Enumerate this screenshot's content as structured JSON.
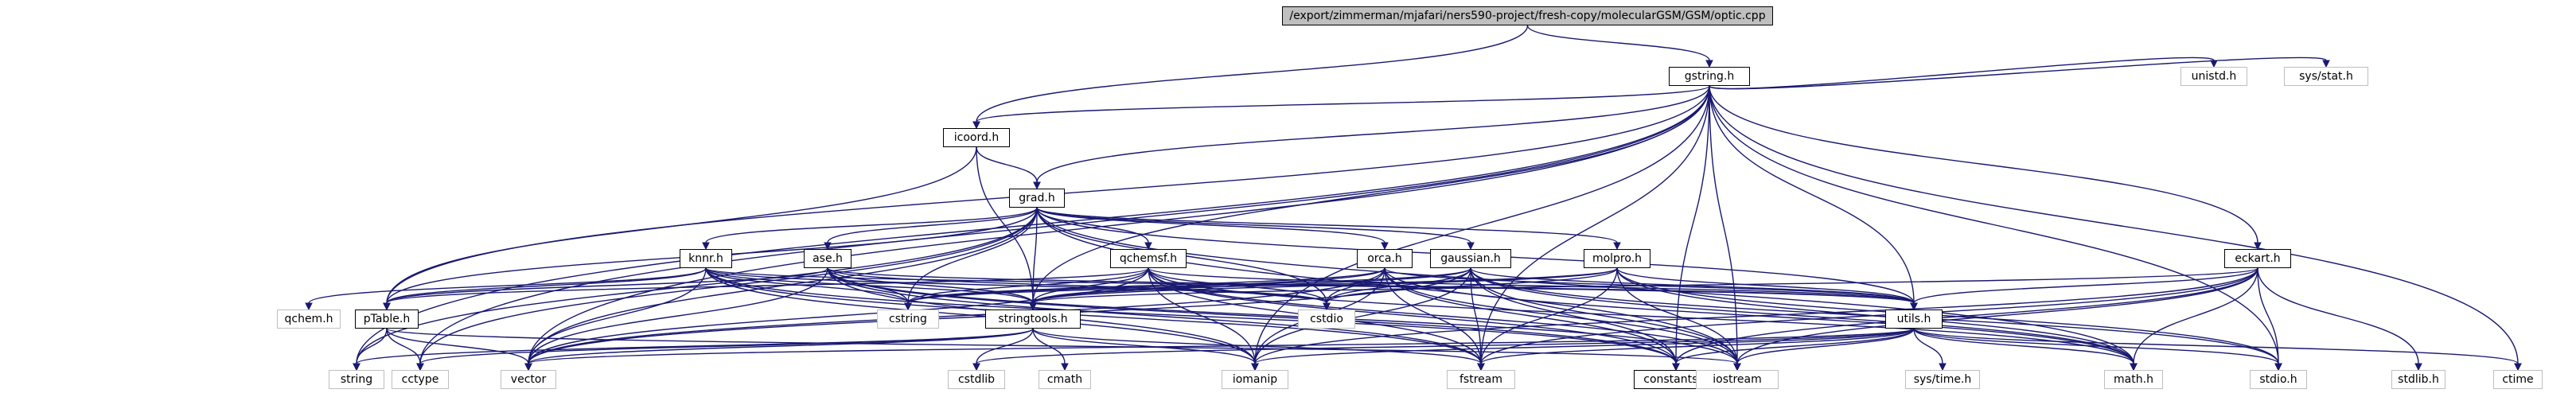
{
  "graph": {
    "title": "/export/zimmerman/mjafari/ners590-project/fresh-copy/molecularGSM/GSM/optic.cpp",
    "colors": {
      "edge": "#191970",
      "documented_border": "#000000",
      "external_border": "#bfbfbf",
      "root_fill": "#bfbfbf"
    },
    "nodes": {
      "root": "/export/zimmerman/mjafari/ners590-project/fresh-copy/molecularGSM/GSM/optic.cpp",
      "gstring": "gstring.h",
      "icoord": "icoord.h",
      "grad": "grad.h",
      "knnr": "knnr.h",
      "ase": "ase.h",
      "qchemsf": "qchemsf.h",
      "orca": "orca.h",
      "gaussian": "gaussian.h",
      "molpro": "molpro.h",
      "eckart": "eckart.h",
      "ptable": "pTable.h",
      "stringtools": "stringtools.h",
      "utils": "utils.h",
      "constants": "constants.h",
      "unistd": "unistd.h",
      "sysstat": "sys/stat.h",
      "qchem": "qchem.h",
      "cstring": "cstring",
      "cstdio": "cstdio",
      "string": "string",
      "cctype": "cctype",
      "vector": "vector",
      "cstdlib": "cstdlib",
      "cmath": "cmath",
      "iomanip": "iomanip",
      "fstream": "fstream",
      "iostream": "iostream",
      "systime": "sys/time.h",
      "math": "math.h",
      "stdio": "stdio.h",
      "stdlib": "stdlib.h",
      "ctime": "ctime"
    },
    "documented": [
      "gstring",
      "icoord",
      "grad",
      "knnr",
      "ase",
      "qchemsf",
      "orca",
      "gaussian",
      "molpro",
      "eckart",
      "ptable",
      "stringtools",
      "utils",
      "constants"
    ],
    "edges": [
      [
        "root",
        "gstring"
      ],
      [
        "root",
        "icoord"
      ],
      [
        "gstring",
        "icoord"
      ],
      [
        "gstring",
        "grad"
      ],
      [
        "gstring",
        "unistd"
      ],
      [
        "gstring",
        "sysstat"
      ],
      [
        "gstring",
        "eckart"
      ],
      [
        "gstring",
        "utils"
      ],
      [
        "gstring",
        "stringtools"
      ],
      [
        "gstring",
        "ptable"
      ],
      [
        "gstring",
        "constants"
      ],
      [
        "gstring",
        "iostream"
      ],
      [
        "gstring",
        "fstream"
      ],
      [
        "gstring",
        "stdio"
      ],
      [
        "gstring",
        "ctime"
      ],
      [
        "gstring",
        "string"
      ],
      [
        "gstring",
        "vector"
      ],
      [
        "gstring",
        "cctype"
      ],
      [
        "gstring",
        "iomanip"
      ],
      [
        "icoord",
        "grad"
      ],
      [
        "icoord",
        "ptable"
      ],
      [
        "icoord",
        "stringtools"
      ],
      [
        "grad",
        "knnr"
      ],
      [
        "grad",
        "ase"
      ],
      [
        "grad",
        "qchemsf"
      ],
      [
        "grad",
        "orca"
      ],
      [
        "grad",
        "gaussian"
      ],
      [
        "grad",
        "molpro"
      ],
      [
        "grad",
        "stringtools"
      ],
      [
        "grad",
        "ptable"
      ],
      [
        "grad",
        "cstring"
      ],
      [
        "grad",
        "cstdio"
      ],
      [
        "grad",
        "utils"
      ],
      [
        "grad",
        "iostream"
      ],
      [
        "grad",
        "vector"
      ],
      [
        "grad",
        "string"
      ],
      [
        "grad",
        "cctype"
      ],
      [
        "grad",
        "math"
      ],
      [
        "knnr",
        "qchem"
      ],
      [
        "knnr",
        "ptable"
      ],
      [
        "knnr",
        "cstring"
      ],
      [
        "knnr",
        "stringtools"
      ],
      [
        "knnr",
        "cstdio"
      ],
      [
        "knnr",
        "vector"
      ],
      [
        "knnr",
        "iomanip"
      ],
      [
        "knnr",
        "fstream"
      ],
      [
        "knnr",
        "constants"
      ],
      [
        "knnr",
        "utils"
      ],
      [
        "ase",
        "ptable"
      ],
      [
        "ase",
        "cstring"
      ],
      [
        "ase",
        "stringtools"
      ],
      [
        "ase",
        "cstdio"
      ],
      [
        "ase",
        "vector"
      ],
      [
        "ase",
        "iomanip"
      ],
      [
        "ase",
        "fstream"
      ],
      [
        "ase",
        "constants"
      ],
      [
        "ase",
        "iostream"
      ],
      [
        "ase",
        "utils"
      ],
      [
        "qchemsf",
        "ptable"
      ],
      [
        "qchemsf",
        "cstring"
      ],
      [
        "qchemsf",
        "stringtools"
      ],
      [
        "qchemsf",
        "cstdio"
      ],
      [
        "qchemsf",
        "vector"
      ],
      [
        "qchemsf",
        "iomanip"
      ],
      [
        "qchemsf",
        "fstream"
      ],
      [
        "qchemsf",
        "constants"
      ],
      [
        "qchemsf",
        "iostream"
      ],
      [
        "qchemsf",
        "math"
      ],
      [
        "qchemsf",
        "utils"
      ],
      [
        "orca",
        "stringtools"
      ],
      [
        "orca",
        "cstring"
      ],
      [
        "orca",
        "cstdio"
      ],
      [
        "orca",
        "vector"
      ],
      [
        "orca",
        "iomanip"
      ],
      [
        "orca",
        "fstream"
      ],
      [
        "orca",
        "constants"
      ],
      [
        "orca",
        "iostream"
      ],
      [
        "orca",
        "utils"
      ],
      [
        "orca",
        "math"
      ],
      [
        "gaussian",
        "stringtools"
      ],
      [
        "gaussian",
        "cstring"
      ],
      [
        "gaussian",
        "cstdio"
      ],
      [
        "gaussian",
        "vector"
      ],
      [
        "gaussian",
        "iomanip"
      ],
      [
        "gaussian",
        "fstream"
      ],
      [
        "gaussian",
        "constants"
      ],
      [
        "gaussian",
        "iostream"
      ],
      [
        "gaussian",
        "utils"
      ],
      [
        "gaussian",
        "math"
      ],
      [
        "gaussian",
        "stdio"
      ],
      [
        "molpro",
        "stringtools"
      ],
      [
        "molpro",
        "cstring"
      ],
      [
        "molpro",
        "cstdio"
      ],
      [
        "molpro",
        "fstream"
      ],
      [
        "molpro",
        "utils"
      ],
      [
        "molpro",
        "iostream"
      ],
      [
        "molpro",
        "math"
      ],
      [
        "molpro",
        "stdio"
      ],
      [
        "eckart",
        "utils"
      ],
      [
        "eckart",
        "stringtools"
      ],
      [
        "eckart",
        "iostream"
      ],
      [
        "eckart",
        "fstream"
      ],
      [
        "eckart",
        "math"
      ],
      [
        "eckart",
        "stdio"
      ],
      [
        "eckart",
        "stdlib"
      ],
      [
        "eckart",
        "constants"
      ],
      [
        "eckart",
        "iomanip"
      ],
      [
        "ptable",
        "string"
      ],
      [
        "ptable",
        "cctype"
      ],
      [
        "ptable",
        "vector"
      ],
      [
        "ptable",
        "iostream"
      ],
      [
        "stringtools",
        "vector"
      ],
      [
        "stringtools",
        "string"
      ],
      [
        "stringtools",
        "cctype"
      ],
      [
        "stringtools",
        "cstdlib"
      ],
      [
        "stringtools",
        "cmath"
      ],
      [
        "stringtools",
        "iomanip"
      ],
      [
        "stringtools",
        "fstream"
      ],
      [
        "utils",
        "vector"
      ],
      [
        "utils",
        "iomanip"
      ],
      [
        "utils",
        "fstream"
      ],
      [
        "utils",
        "constants"
      ],
      [
        "utils",
        "iostream"
      ],
      [
        "utils",
        "systime"
      ],
      [
        "utils",
        "math"
      ],
      [
        "utils",
        "stdio"
      ],
      [
        "utils",
        "ctime"
      ],
      [
        "utils",
        "cstdlib"
      ]
    ]
  }
}
